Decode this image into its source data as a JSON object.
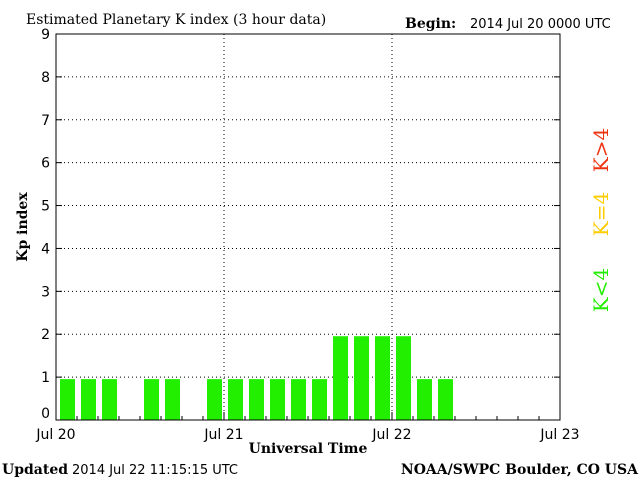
{
  "chart_data": {
    "type": "bar",
    "title": "Estimated Planetary K index (3 hour data)",
    "begin_label": "Begin:",
    "begin_value": "2014 Jul 20 0000 UTC",
    "ylabel": "Kp index",
    "xlabel": "Universal Time",
    "ylim": [
      0,
      9
    ],
    "y_ticks": [
      "0",
      "1",
      "2",
      "3",
      "4",
      "5",
      "6",
      "7",
      "8",
      "9"
    ],
    "x_ticks": [
      "Jul 20",
      "Jul 21",
      "Jul 22",
      "Jul 23"
    ],
    "slots_total": 24,
    "values": [
      1,
      1,
      1,
      null,
      1,
      1,
      null,
      1,
      1,
      1,
      1,
      1,
      1,
      2,
      2,
      2,
      2,
      1,
      1,
      null,
      null,
      null,
      null,
      null
    ],
    "grid": true,
    "bar_color": "#22ee00",
    "legend": [
      {
        "label": "K<4",
        "color": "#22ee00"
      },
      {
        "label": "K=4",
        "color": "#ffcc00"
      },
      {
        "label": "K>4",
        "color": "#ee3311"
      }
    ]
  },
  "footer": {
    "updated_label": "Updated",
    "updated_value": "2014 Jul 22 11:15:15 UTC",
    "source": "NOAA/SWPC Boulder, CO USA"
  }
}
